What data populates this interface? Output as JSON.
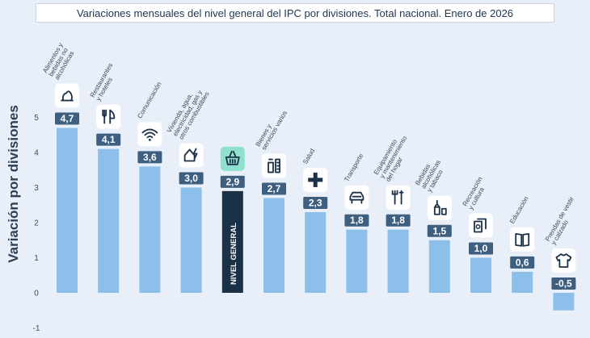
{
  "colors": {
    "bar": "#8cbfea",
    "general_bar": "#1b3147",
    "label_bg": "#3e5f80",
    "label_text": "#ffffff",
    "axis_text": "#3a4a5c",
    "ylabel_text": "#2b3f57",
    "icon_bg": "#ffffff",
    "icon_bg_general": "#8fe0cf",
    "icon_stroke": "#1b3147"
  },
  "chart_data": {
    "type": "bar",
    "title": "Variaciones mensuales del nivel general del IPC por divisiones. Total nacional. Enero de 2026",
    "ylabel": "Variación por divisiones",
    "xlabel": "",
    "ylim": [
      -1,
      5
    ],
    "yticks": [
      "-1",
      "0",
      "1",
      "2",
      "3",
      "4",
      "5"
    ],
    "categories": [
      "Alimentos y bebidas no alcohólicas",
      "Restaurantes y hoteles",
      "Comunicación",
      "Vivienda, agua, electricidad, gas y otros combustibles",
      "NIVEL GENERAL",
      "Bienes y servicios varios",
      "Salud",
      "Transporte",
      "Equipamiento y mantenimiento del hogar",
      "Bebidas alcohólicas y tabaco",
      "Recreación y cultura",
      "Educación",
      "Prendas de vestir y calzado"
    ],
    "values": [
      4.7,
      4.1,
      3.6,
      3.0,
      2.9,
      2.7,
      2.3,
      1.8,
      1.8,
      1.5,
      1.0,
      0.6,
      -0.5
    ],
    "value_labels": [
      "4,7",
      "4,1",
      "3,6",
      "3,0",
      "2,9",
      "2,7",
      "2,3",
      "1,8",
      "1,8",
      "1,5",
      "1,0",
      "0,6",
      "-0,5"
    ],
    "category_lines": [
      [
        "Alimentos y",
        "bebidas no",
        "alcohólicas"
      ],
      [
        "Restaurantes",
        "y hoteles"
      ],
      [
        "Comunicación"
      ],
      [
        "Vivienda, agua,",
        "electricidad, gas y",
        "otros combustibles"
      ],
      [
        "NIVEL GENERAL"
      ],
      [
        "Bienes y",
        "servicios varios"
      ],
      [
        "Salud"
      ],
      [
        "Transporte"
      ],
      [
        "Equipamiento",
        "y mantenimiento",
        "del hogar"
      ],
      [
        "Bebidas",
        "alcohólicas",
        "y tabaco"
      ],
      [
        "Recreación",
        "y cultura"
      ],
      [
        "Educación"
      ],
      [
        "Prendas de vestir",
        "y calzado"
      ]
    ],
    "icons": [
      "food-icon",
      "cutlery-icon",
      "wifi-icon",
      "house-icon",
      "basket-icon",
      "bottles-icon",
      "cross-icon",
      "car-icon",
      "tools-icon",
      "bottle-glass-icon",
      "cards-icon",
      "book-icon",
      "shirt-icon"
    ],
    "highlight_index": 4
  }
}
